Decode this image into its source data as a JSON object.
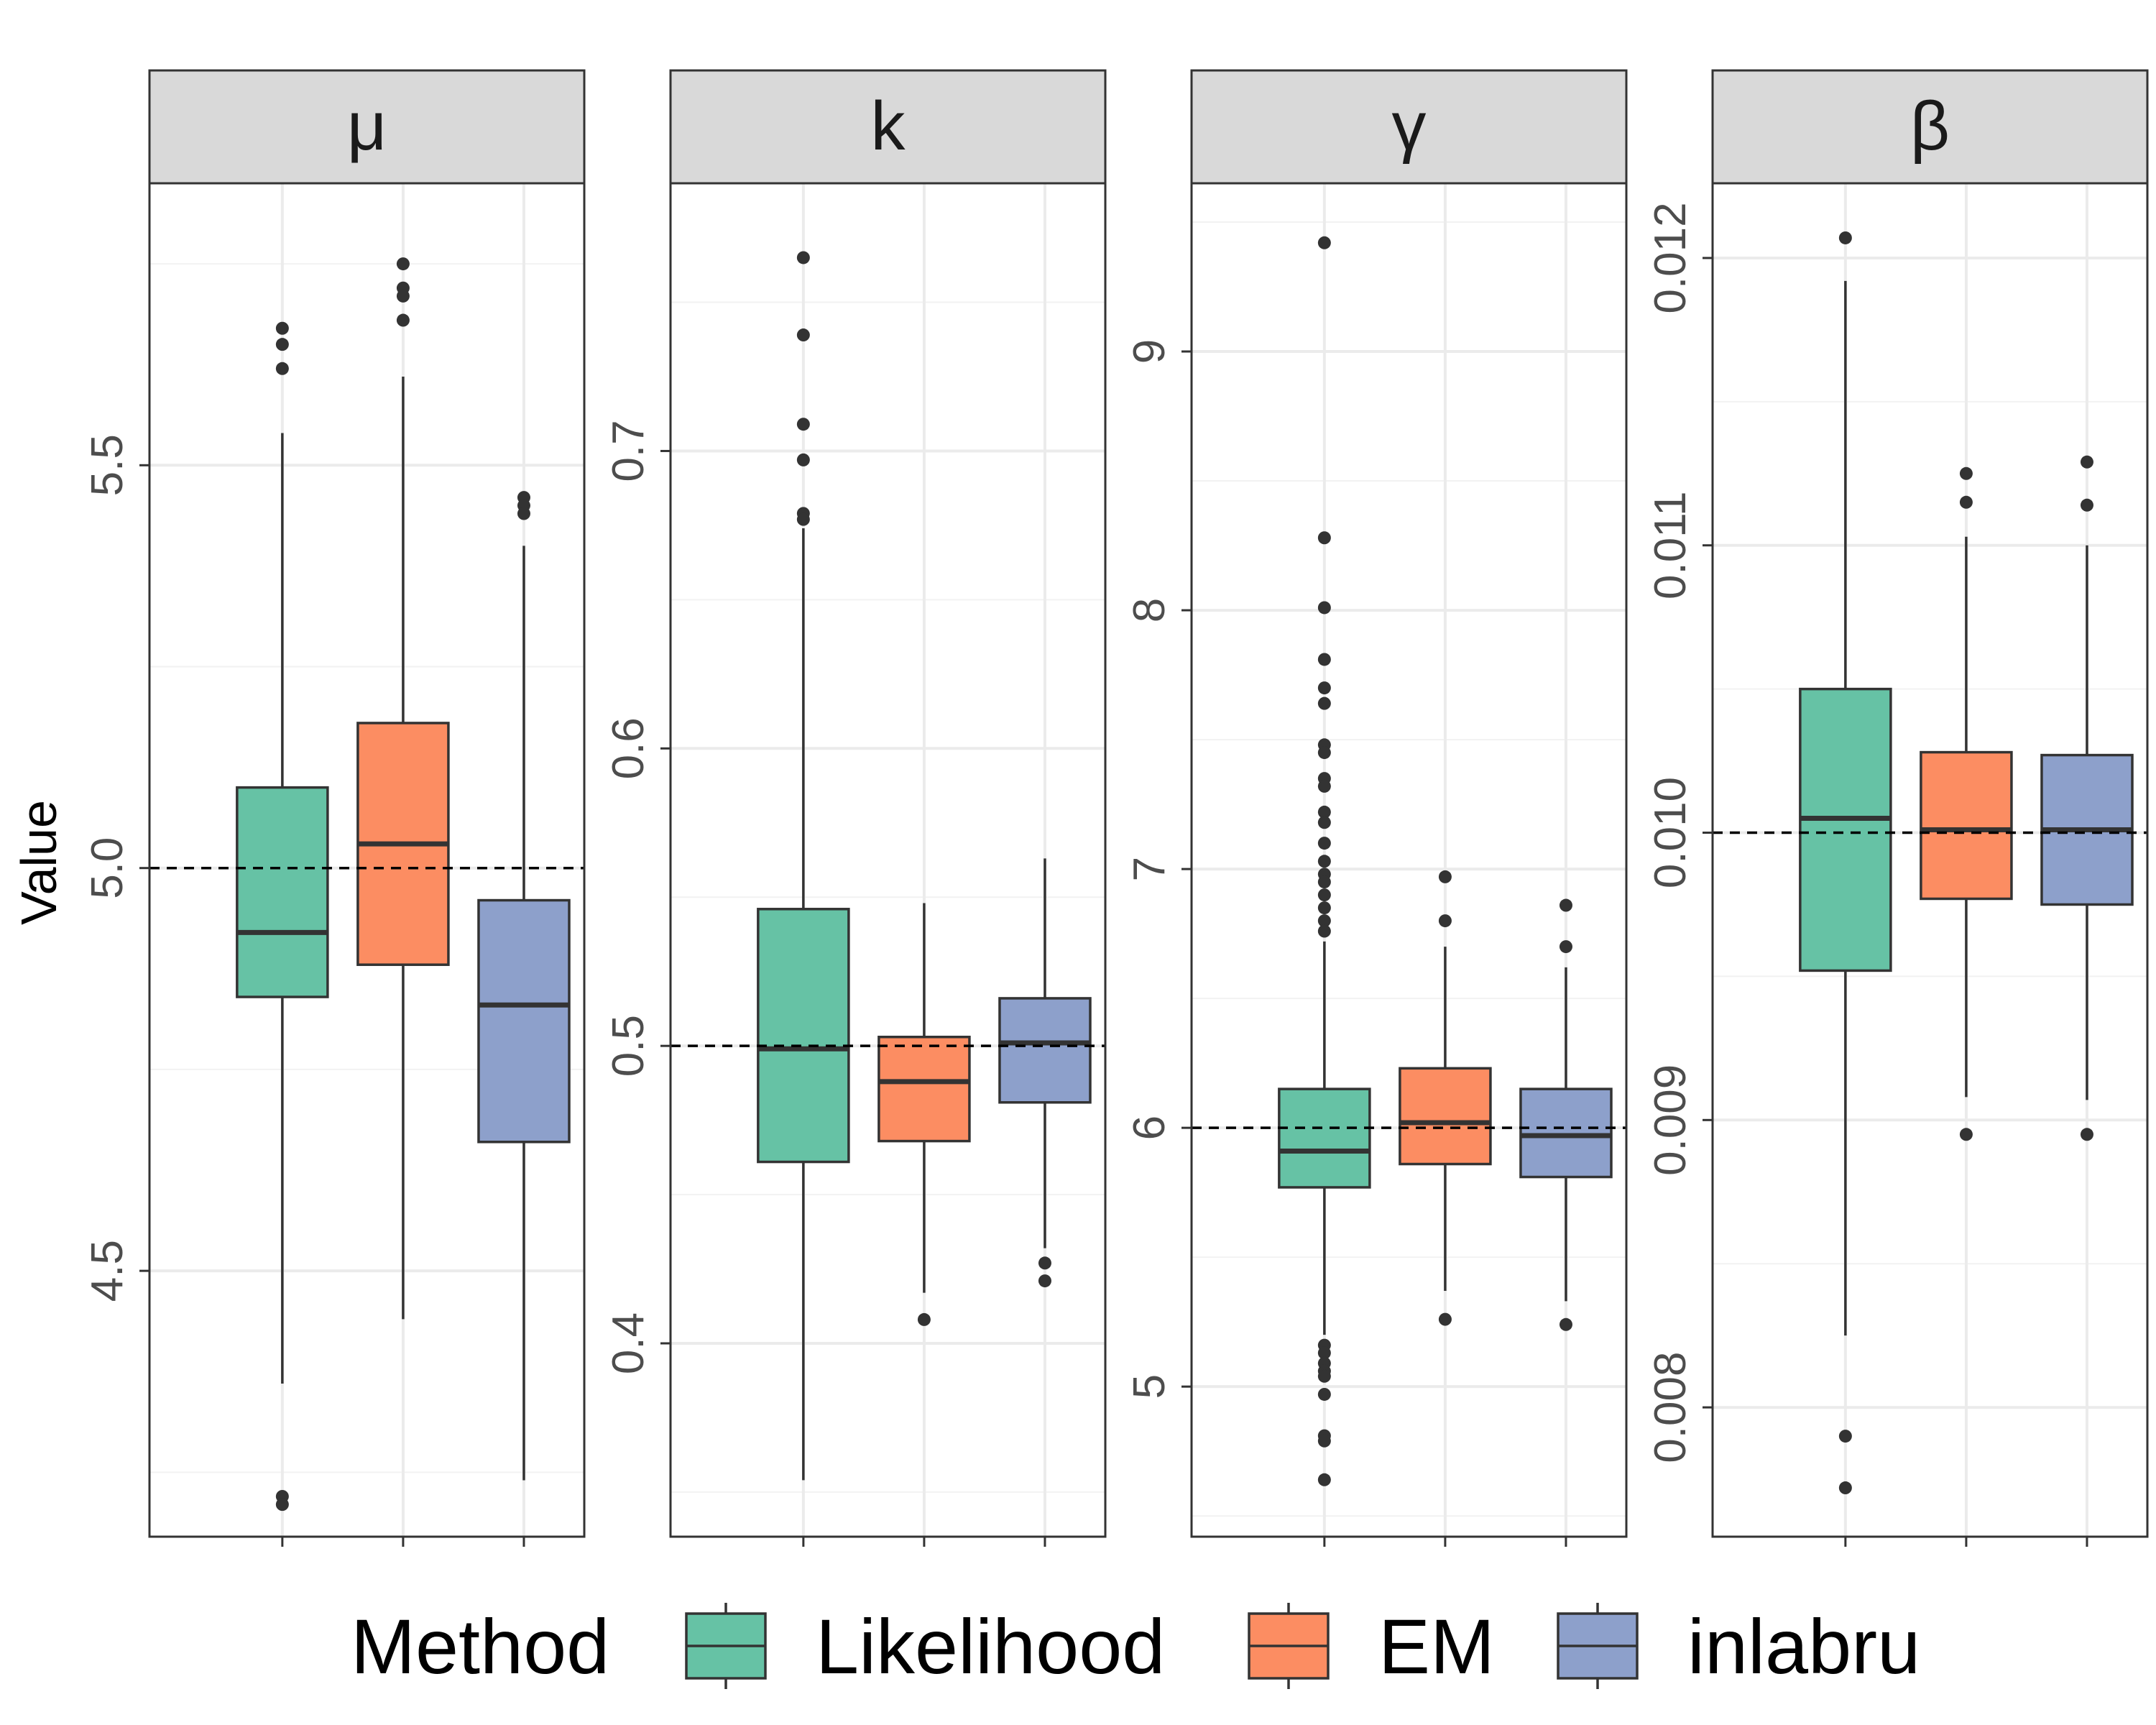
{
  "chart_data": {
    "type": "boxplot",
    "ylabel": "Value",
    "legend": {
      "title": "Method",
      "placement": "bottom",
      "entries": [
        "Likelihood",
        "EM",
        "inlabru"
      ]
    },
    "colors": {
      "Likelihood": "#66c2a5",
      "EM": "#fc8d62",
      "inlabru": "#8da0cb"
    },
    "panels": [
      {
        "strip": "μ",
        "true_value": 5.0,
        "ylim": [
          4.17,
          5.85
        ],
        "ticks": [
          4.5,
          5.0,
          5.5
        ],
        "tick_labels": [
          "4.5",
          "5.0",
          "5.5"
        ],
        "boxes": [
          {
            "method": "Likelihood",
            "lower_whisker": 4.36,
            "q1": 4.84,
            "median": 4.92,
            "q3": 5.1,
            "upper_whisker": 5.54,
            "outliers": [
              5.67,
              5.65,
              5.62,
              4.22,
              4.21
            ]
          },
          {
            "method": "EM",
            "lower_whisker": 4.44,
            "q1": 4.88,
            "median": 5.03,
            "q3": 5.18,
            "upper_whisker": 5.61,
            "outliers": [
              5.75,
              5.72,
              5.71,
              5.68
            ]
          },
          {
            "method": "inlabru",
            "lower_whisker": 4.24,
            "q1": 4.66,
            "median": 4.83,
            "q3": 4.96,
            "upper_whisker": 5.4,
            "outliers": [
              5.46,
              5.45,
              5.44
            ]
          }
        ]
      },
      {
        "strip": "k",
        "true_value": 0.5,
        "ylim": [
          0.335,
          0.79
        ],
        "ticks": [
          0.4,
          0.5,
          0.6,
          0.7
        ],
        "tick_labels": [
          "0.4",
          "0.5",
          "0.6",
          "0.7"
        ],
        "boxes": [
          {
            "method": "Likelihood",
            "lower_whisker": 0.354,
            "q1": 0.461,
            "median": 0.499,
            "q3": 0.546,
            "upper_whisker": 0.674,
            "outliers": [
              0.765,
              0.739,
              0.709,
              0.697,
              0.679,
              0.677
            ]
          },
          {
            "method": "EM",
            "lower_whisker": 0.417,
            "q1": 0.468,
            "median": 0.488,
            "q3": 0.503,
            "upper_whisker": 0.548,
            "outliers": [
              0.408
            ]
          },
          {
            "method": "inlabru",
            "lower_whisker": 0.432,
            "q1": 0.481,
            "median": 0.501,
            "q3": 0.516,
            "upper_whisker": 0.563,
            "outliers": [
              0.427,
              0.421
            ]
          }
        ]
      },
      {
        "strip": "γ",
        "true_value": 6.0,
        "ylim": [
          4.42,
          9.65
        ],
        "ticks": [
          5,
          6,
          7,
          8,
          9
        ],
        "tick_labels": [
          "5",
          "6",
          "7",
          "8",
          "9"
        ],
        "boxes": [
          {
            "method": "Likelihood",
            "lower_whisker": 5.2,
            "q1": 5.77,
            "median": 5.91,
            "q3": 6.15,
            "upper_whisker": 6.72,
            "outliers": [
              9.42,
              8.28,
              8.01,
              7.81,
              7.7,
              7.64,
              7.48,
              7.45,
              7.35,
              7.32,
              7.22,
              7.18,
              7.1,
              7.03,
              6.98,
              6.95,
              6.9,
              6.85,
              6.8,
              6.76,
              5.16,
              5.13,
              5.09,
              5.06,
              5.04,
              4.97,
              4.81,
              4.79,
              4.64
            ]
          },
          {
            "method": "EM",
            "lower_whisker": 5.37,
            "q1": 5.86,
            "median": 6.02,
            "q3": 6.23,
            "upper_whisker": 6.7,
            "outliers": [
              6.97,
              6.8,
              5.26
            ]
          },
          {
            "method": "inlabru",
            "lower_whisker": 5.33,
            "q1": 5.81,
            "median": 5.97,
            "q3": 6.15,
            "upper_whisker": 6.62,
            "outliers": [
              6.86,
              6.7,
              5.24
            ]
          }
        ]
      },
      {
        "strip": "β",
        "true_value": 0.01,
        "ylim": [
          0.00755,
          0.01226
        ],
        "ticks": [
          0.008,
          0.009,
          0.01,
          0.011,
          0.012
        ],
        "tick_labels": [
          "0.008",
          "0.009",
          "0.010",
          "0.011",
          "0.012"
        ],
        "boxes": [
          {
            "method": "Likelihood",
            "lower_whisker": 0.00825,
            "q1": 0.00952,
            "median": 0.01005,
            "q3": 0.0105,
            "upper_whisker": 0.01192,
            "outliers": [
              0.01207,
              0.0079,
              0.00772
            ]
          },
          {
            "method": "EM",
            "lower_whisker": 0.00908,
            "q1": 0.00977,
            "median": 0.01001,
            "q3": 0.01028,
            "upper_whisker": 0.01103,
            "outliers": [
              0.01125,
              0.01115,
              0.00895
            ]
          },
          {
            "method": "inlabru",
            "lower_whisker": 0.00907,
            "q1": 0.00975,
            "median": 0.01001,
            "q3": 0.01027,
            "upper_whisker": 0.011,
            "outliers": [
              0.01129,
              0.01114,
              0.00895
            ]
          }
        ]
      }
    ]
  }
}
